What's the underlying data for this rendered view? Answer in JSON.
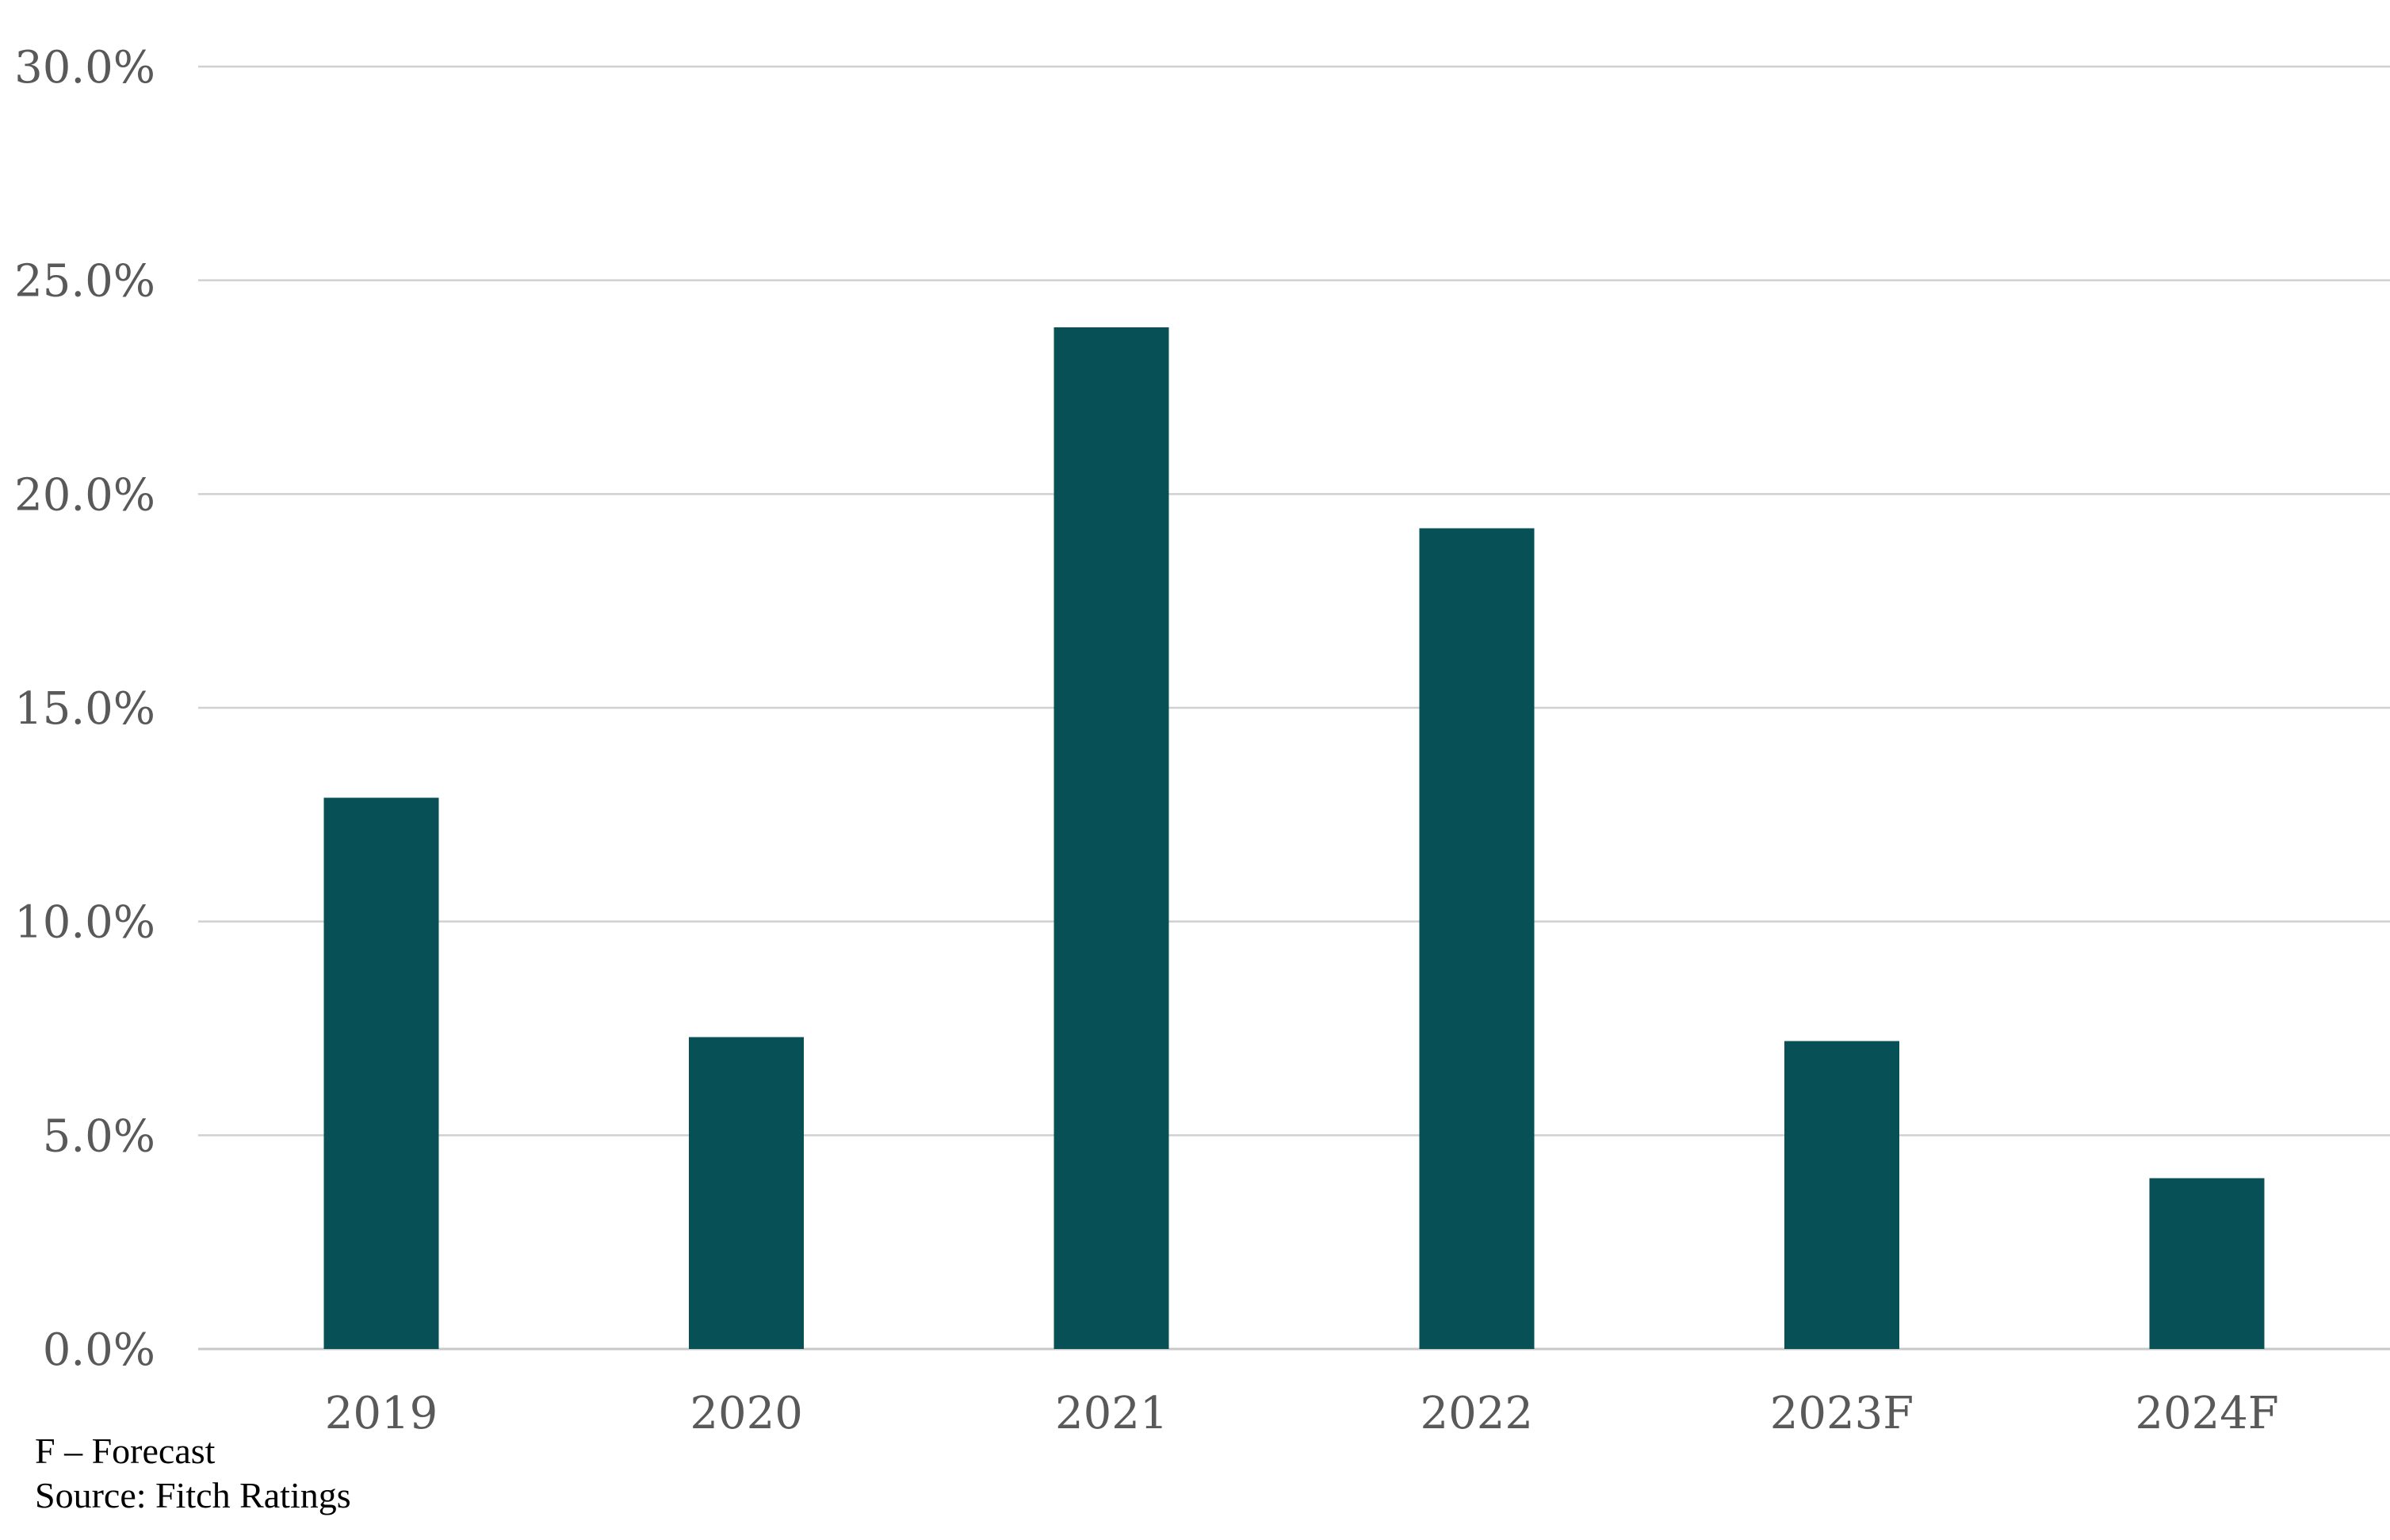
{
  "chart_data": {
    "type": "bar",
    "title": "",
    "xlabel": "",
    "ylabel": "",
    "categories": [
      "2019",
      "2020",
      "2021",
      "2022",
      "2023F",
      "2024F"
    ],
    "values": [
      12.9,
      7.3,
      23.9,
      19.2,
      7.2,
      4.0
    ],
    "ylim": [
      0,
      30
    ],
    "yticks": [
      0,
      5,
      10,
      15,
      20,
      25,
      30
    ],
    "ytick_labels": [
      "0.0%",
      "5.0%",
      "10.0%",
      "15.0%",
      "20.0%",
      "25.0%",
      "30.0%"
    ],
    "grid": true,
    "legend": "none",
    "bar_color": "#075056"
  },
  "footnotes": {
    "forecast": "F – Forecast",
    "source": "Source: Fitch Ratings"
  }
}
